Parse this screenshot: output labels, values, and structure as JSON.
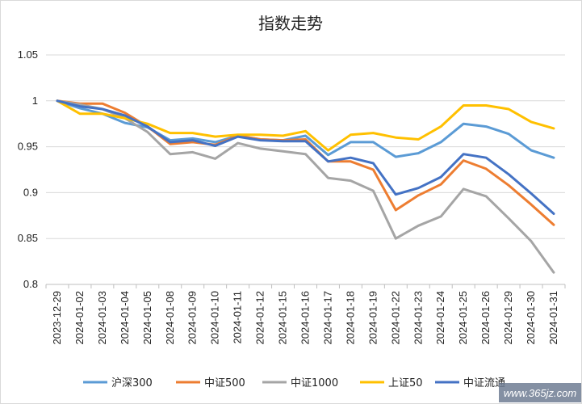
{
  "chart_data": {
    "type": "line",
    "title": "指数走势",
    "xlabel": "",
    "ylabel": "",
    "ylim": [
      0.8,
      1.05
    ],
    "yticks": [
      "0.8",
      "0.85",
      "0.9",
      "0.95",
      "1",
      "1.05"
    ],
    "ytick_values": [
      0.8,
      0.85,
      0.9,
      0.95,
      1.0,
      1.05
    ],
    "grid": "horizontal",
    "legend_position": "bottom",
    "categories": [
      "2023-12-29",
      "2024-01-02",
      "2024-01-03",
      "2024-01-04",
      "2024-01-05",
      "2024-01-08",
      "2024-01-09",
      "2024-01-10",
      "2024-01-11",
      "2024-01-12",
      "2024-01-15",
      "2024-01-16",
      "2024-01-17",
      "2024-01-18",
      "2024-01-19",
      "2024-01-22",
      "2024-01-23",
      "2024-01-24",
      "2024-01-25",
      "2024-01-26",
      "2024-01-29",
      "2024-01-30",
      "2024-01-31"
    ],
    "series": [
      {
        "name": "沪深300",
        "color": "#5b9bd5",
        "values": [
          1.0,
          0.992,
          0.986,
          0.976,
          0.971,
          0.957,
          0.959,
          0.955,
          0.962,
          0.958,
          0.957,
          0.962,
          0.941,
          0.955,
          0.955,
          0.939,
          0.943,
          0.955,
          0.975,
          0.972,
          0.964,
          0.946,
          0.938
        ]
      },
      {
        "name": "中证500",
        "color": "#ed7d31",
        "values": [
          1.0,
          0.997,
          0.997,
          0.987,
          0.972,
          0.953,
          0.955,
          0.952,
          0.962,
          0.958,
          0.957,
          0.958,
          0.934,
          0.934,
          0.925,
          0.881,
          0.897,
          0.909,
          0.935,
          0.926,
          0.908,
          0.887,
          0.865
        ]
      },
      {
        "name": "中证1000",
        "color": "#a5a5a5",
        "values": [
          1.0,
          0.996,
          0.991,
          0.981,
          0.966,
          0.942,
          0.944,
          0.937,
          0.954,
          0.948,
          0.945,
          0.942,
          0.916,
          0.913,
          0.902,
          0.85,
          0.864,
          0.874,
          0.904,
          0.896,
          0.872,
          0.847,
          0.813
        ]
      },
      {
        "name": "上证50",
        "color": "#ffc000",
        "values": [
          1.0,
          0.986,
          0.986,
          0.981,
          0.975,
          0.965,
          0.965,
          0.961,
          0.963,
          0.963,
          0.962,
          0.967,
          0.946,
          0.963,
          0.965,
          0.96,
          0.958,
          0.972,
          0.995,
          0.995,
          0.991,
          0.977,
          0.97
        ]
      },
      {
        "name": "中证流通",
        "color": "#4472c4",
        "values": [
          1.0,
          0.994,
          0.991,
          0.984,
          0.972,
          0.955,
          0.957,
          0.951,
          0.961,
          0.957,
          0.956,
          0.956,
          0.934,
          0.938,
          0.932,
          0.898,
          0.905,
          0.917,
          0.942,
          0.938,
          0.92,
          0.899,
          0.877
        ]
      }
    ]
  },
  "watermark": "www.365jz.com"
}
